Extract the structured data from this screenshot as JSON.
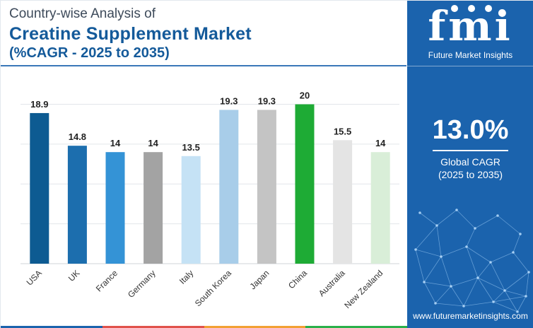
{
  "title": {
    "line1": "Country-wise Analysis of",
    "line2": "Creatine Supplement Market",
    "line3": "(%CAGR - 2025 to 2035)"
  },
  "sidebar": {
    "logo_text": "fmi",
    "logo_subtitle": "Future Market Insights",
    "cagr_value": "13.0%",
    "cagr_label": "Global CAGR",
    "cagr_period": "(2025 to 2035)",
    "website": "www.futuremarketinsights.com",
    "background_color": "#1b63ad"
  },
  "colors": {
    "bottom_bar": [
      "#1b63ad",
      "#e0524b",
      "#f2a033",
      "#2ab04a"
    ]
  },
  "chart_data": {
    "type": "bar",
    "title": "Creatine Supplement Market",
    "xlabel": "",
    "ylabel": "",
    "ylim": [
      0,
      22
    ],
    "grid": true,
    "categories": [
      "USA",
      "UK",
      "France",
      "Germany",
      "Italy",
      "South Korea",
      "Japan",
      "China",
      "Australia",
      "New Zealand"
    ],
    "values": [
      18.9,
      14.8,
      14,
      14,
      13.5,
      19.3,
      19.3,
      20,
      15.5,
      14
    ],
    "value_labels": [
      "18.9",
      "14.8",
      "14",
      "14",
      "13.5",
      "19.3",
      "19.3",
      "20",
      "15.5",
      "14"
    ],
    "bar_colors": [
      "#0d5b92",
      "#1c6eae",
      "#3493d6",
      "#a3a3a3",
      "#c5e2f5",
      "#a8cde9",
      "#c4c4c4",
      "#1eab35",
      "#e4e4e4",
      "#d9eed8"
    ]
  }
}
